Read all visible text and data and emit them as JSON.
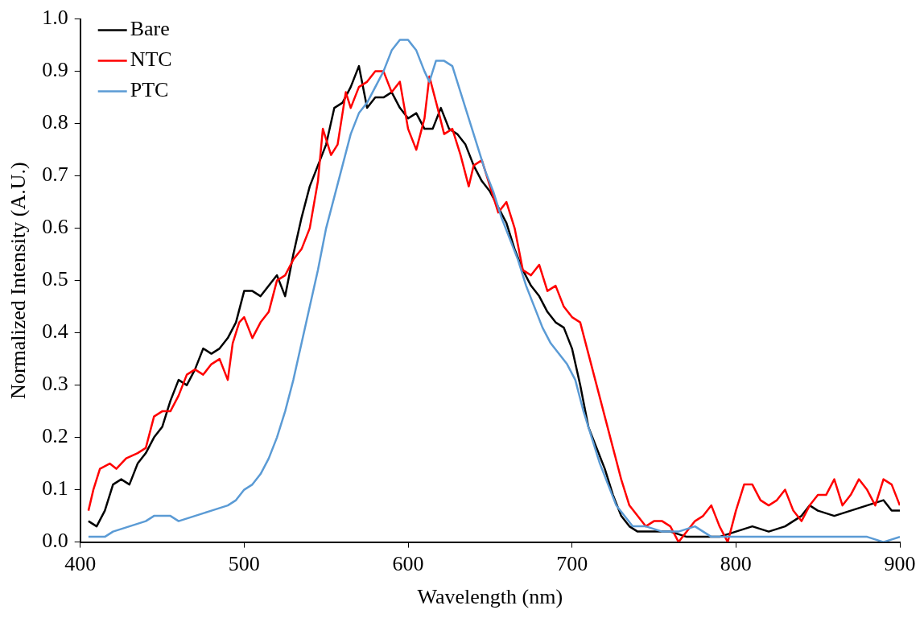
{
  "chart_data": {
    "type": "line",
    "xlabel": "Wavelength (nm)",
    "ylabel": "Normalized Intensity (A.U.)",
    "xlim": [
      400,
      900
    ],
    "xticks": [
      400,
      500,
      600,
      700,
      800,
      900
    ],
    "ylim": [
      0,
      1
    ],
    "yticks": [
      {
        "value": 0,
        "label": "0.0"
      },
      0.1,
      0.2,
      0.3,
      0.4,
      0.5,
      0.6,
      0.7,
      0.8,
      0.9,
      {
        "value": 1,
        "label": "1.0"
      }
    ],
    "grid": false,
    "legend": "top left",
    "marker": "none",
    "line_style": "solid",
    "series": [
      {
        "name": "Bare",
        "color": "#000000",
        "x": [
          405,
          410,
          415,
          420,
          425,
          430,
          435,
          440,
          445,
          450,
          455,
          460,
          465,
          470,
          475,
          480,
          485,
          490,
          495,
          500,
          505,
          510,
          515,
          520,
          525,
          530,
          535,
          540,
          545,
          550,
          555,
          560,
          565,
          570,
          575,
          580,
          585,
          590,
          595,
          600,
          605,
          610,
          615,
          620,
          625,
          630,
          635,
          640,
          645,
          650,
          655,
          660,
          665,
          670,
          675,
          680,
          685,
          690,
          695,
          700,
          705,
          710,
          715,
          720,
          725,
          730,
          735,
          740,
          750,
          760,
          770,
          780,
          790,
          800,
          810,
          820,
          830,
          840,
          845,
          850,
          860,
          870,
          880,
          890,
          895,
          900
        ],
        "values": [
          0.04,
          0.03,
          0.06,
          0.11,
          0.12,
          0.11,
          0.15,
          0.17,
          0.2,
          0.22,
          0.27,
          0.31,
          0.3,
          0.33,
          0.37,
          0.36,
          0.37,
          0.39,
          0.42,
          0.48,
          0.48,
          0.47,
          0.49,
          0.51,
          0.47,
          0.55,
          0.62,
          0.68,
          0.72,
          0.76,
          0.83,
          0.84,
          0.87,
          0.91,
          0.83,
          0.85,
          0.85,
          0.86,
          0.83,
          0.81,
          0.82,
          0.79,
          0.79,
          0.83,
          0.79,
          0.78,
          0.76,
          0.72,
          0.69,
          0.67,
          0.64,
          0.61,
          0.56,
          0.52,
          0.49,
          0.47,
          0.44,
          0.42,
          0.41,
          0.37,
          0.3,
          0.22,
          0.18,
          0.14,
          0.09,
          0.05,
          0.03,
          0.02,
          0.02,
          0.02,
          0.01,
          0.01,
          0.01,
          0.02,
          0.03,
          0.02,
          0.03,
          0.05,
          0.07,
          0.06,
          0.05,
          0.06,
          0.07,
          0.08,
          0.06,
          0.06
        ]
      },
      {
        "name": "NTC",
        "color": "#ff0000",
        "x": [
          405,
          408,
          412,
          418,
          422,
          428,
          435,
          440,
          445,
          450,
          455,
          460,
          465,
          470,
          475,
          480,
          485,
          490,
          493,
          497,
          500,
          505,
          510,
          515,
          520,
          525,
          530,
          535,
          540,
          545,
          548,
          553,
          557,
          562,
          565,
          570,
          575,
          580,
          585,
          590,
          595,
          600,
          605,
          610,
          613,
          618,
          622,
          627,
          632,
          637,
          640,
          645,
          650,
          655,
          660,
          665,
          670,
          675,
          680,
          685,
          690,
          695,
          700,
          705,
          710,
          715,
          720,
          725,
          730,
          735,
          740,
          745,
          750,
          755,
          760,
          765,
          770,
          775,
          780,
          785,
          790,
          795,
          800,
          805,
          810,
          815,
          820,
          825,
          830,
          835,
          840,
          845,
          850,
          855,
          860,
          865,
          870,
          875,
          880,
          885,
          890,
          895,
          900
        ],
        "values": [
          0.06,
          0.1,
          0.14,
          0.15,
          0.14,
          0.16,
          0.17,
          0.18,
          0.24,
          0.25,
          0.25,
          0.28,
          0.32,
          0.33,
          0.32,
          0.34,
          0.35,
          0.31,
          0.38,
          0.42,
          0.43,
          0.39,
          0.42,
          0.44,
          0.5,
          0.51,
          0.54,
          0.56,
          0.6,
          0.69,
          0.79,
          0.74,
          0.76,
          0.86,
          0.83,
          0.87,
          0.88,
          0.9,
          0.9,
          0.86,
          0.88,
          0.79,
          0.75,
          0.81,
          0.89,
          0.83,
          0.78,
          0.79,
          0.74,
          0.68,
          0.72,
          0.73,
          0.68,
          0.63,
          0.65,
          0.6,
          0.52,
          0.51,
          0.53,
          0.48,
          0.49,
          0.45,
          0.43,
          0.42,
          0.36,
          0.3,
          0.24,
          0.18,
          0.12,
          0.07,
          0.05,
          0.03,
          0.04,
          0.04,
          0.03,
          0.0,
          0.02,
          0.04,
          0.05,
          0.07,
          0.03,
          0.0,
          0.06,
          0.11,
          0.11,
          0.08,
          0.07,
          0.08,
          0.1,
          0.06,
          0.04,
          0.07,
          0.09,
          0.09,
          0.12,
          0.07,
          0.09,
          0.12,
          0.1,
          0.07,
          0.12,
          0.11,
          0.07
        ]
      },
      {
        "name": "PTC",
        "color": "#5b9bd5",
        "x": [
          405,
          415,
          420,
          430,
          440,
          445,
          455,
          460,
          470,
          480,
          490,
          495,
          500,
          505,
          510,
          515,
          520,
          525,
          530,
          535,
          540,
          545,
          550,
          555,
          560,
          565,
          570,
          575,
          580,
          585,
          590,
          595,
          600,
          605,
          610,
          613,
          617,
          622,
          627,
          632,
          637,
          642,
          647,
          652,
          657,
          662,
          667,
          672,
          677,
          682,
          687,
          692,
          697,
          702,
          707,
          712,
          717,
          722,
          727,
          732,
          737,
          745,
          755,
          765,
          775,
          785,
          800,
          820,
          840,
          860,
          880,
          890,
          900
        ],
        "values": [
          0.01,
          0.01,
          0.02,
          0.03,
          0.04,
          0.05,
          0.05,
          0.04,
          0.05,
          0.06,
          0.07,
          0.08,
          0.1,
          0.11,
          0.13,
          0.16,
          0.2,
          0.25,
          0.31,
          0.38,
          0.45,
          0.52,
          0.6,
          0.66,
          0.72,
          0.78,
          0.82,
          0.84,
          0.87,
          0.9,
          0.94,
          0.96,
          0.96,
          0.94,
          0.9,
          0.88,
          0.92,
          0.92,
          0.91,
          0.86,
          0.81,
          0.76,
          0.71,
          0.67,
          0.62,
          0.58,
          0.54,
          0.49,
          0.45,
          0.41,
          0.38,
          0.36,
          0.34,
          0.31,
          0.25,
          0.2,
          0.15,
          0.11,
          0.07,
          0.05,
          0.03,
          0.03,
          0.02,
          0.02,
          0.03,
          0.01,
          0.01,
          0.01,
          0.01,
          0.01,
          0.01,
          0.0,
          0.01
        ]
      }
    ]
  }
}
